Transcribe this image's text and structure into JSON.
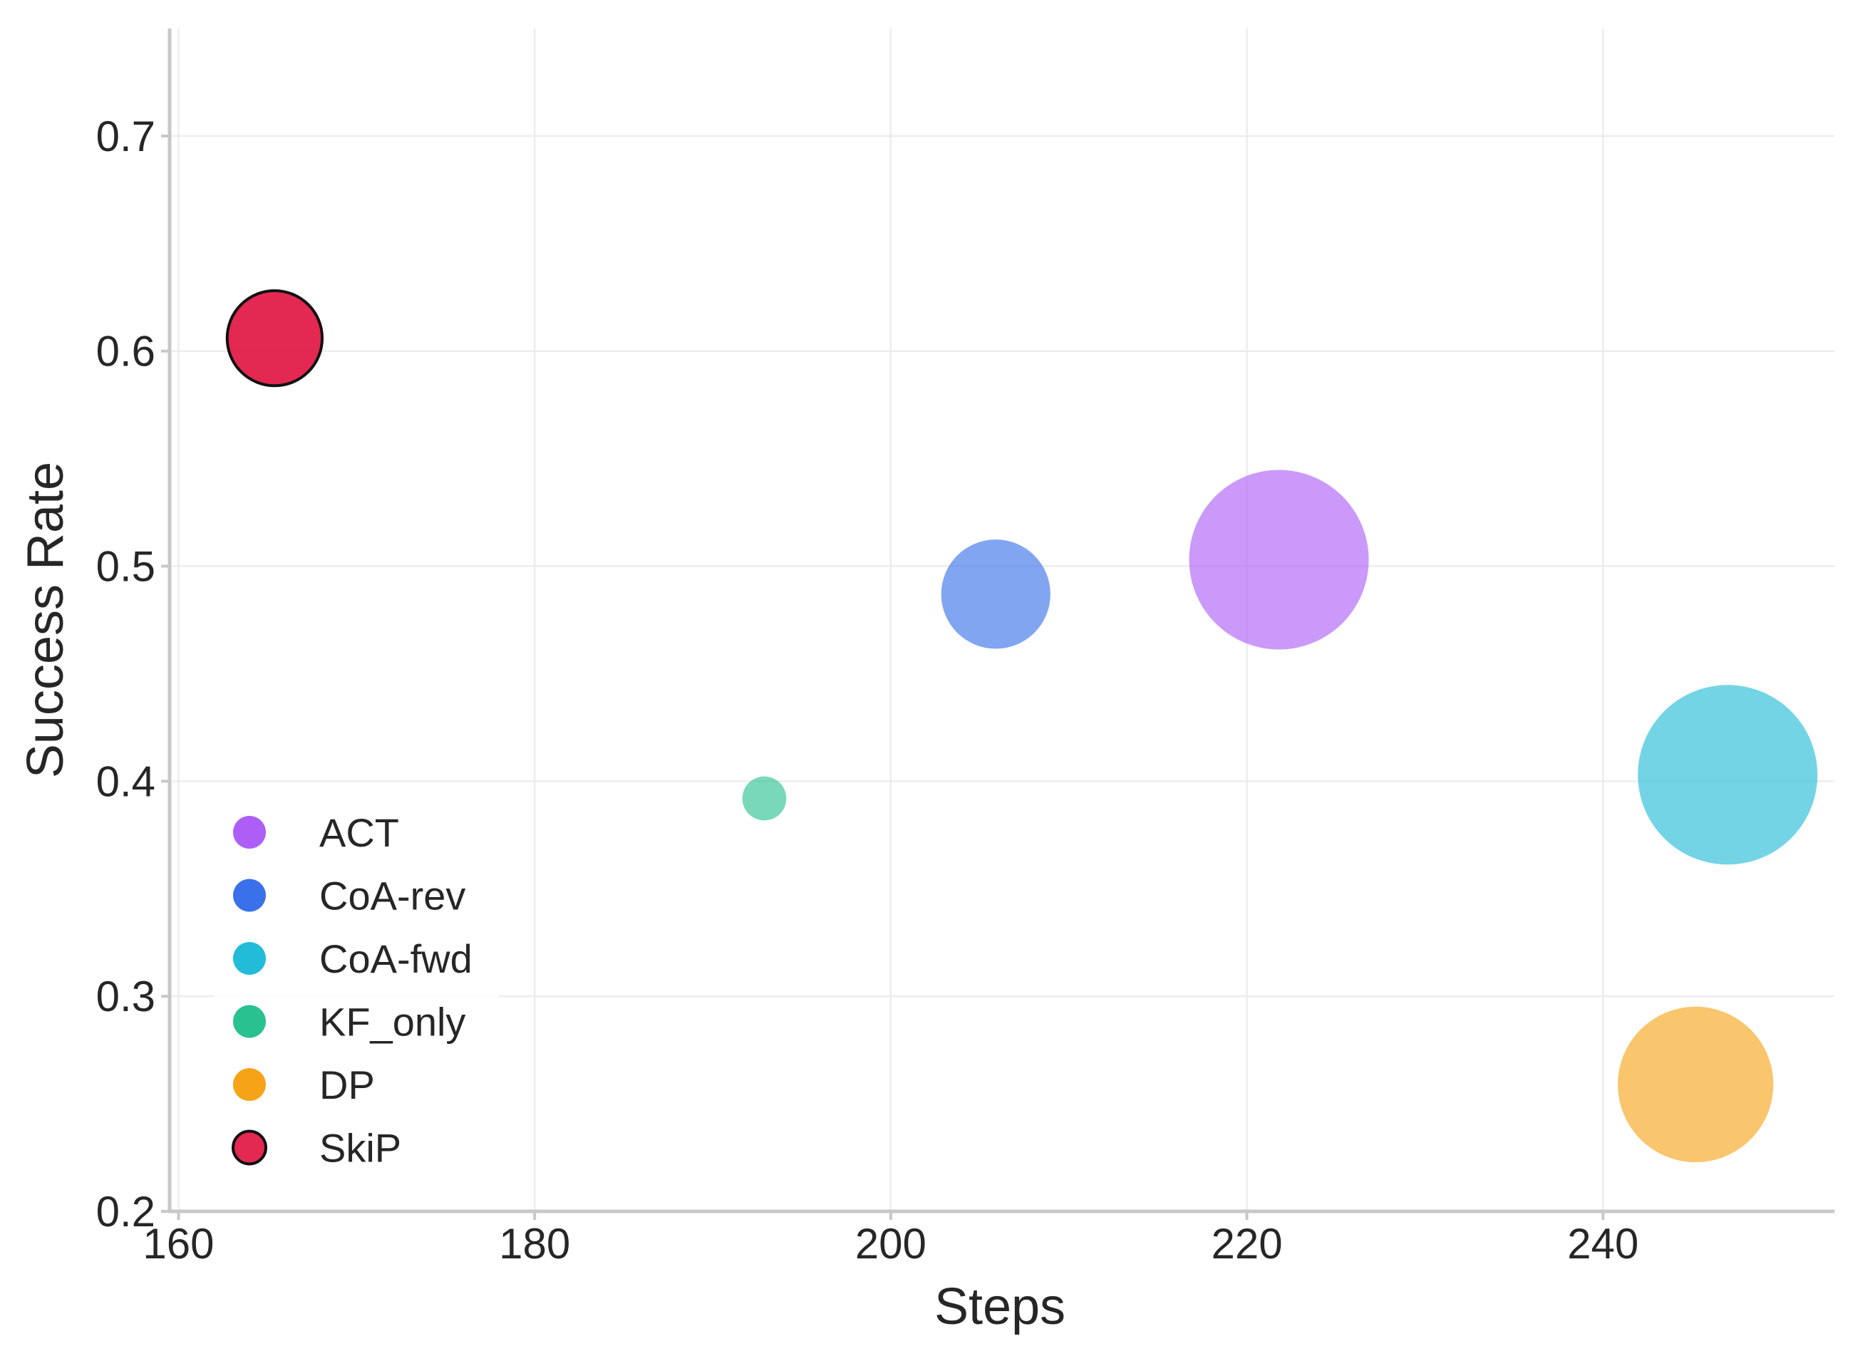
{
  "chart_data": {
    "type": "scatter",
    "subtype": "bubble",
    "title": "",
    "xlabel": "Steps",
    "ylabel": "Success Rate",
    "xlim": [
      159.5,
      253
    ],
    "ylim": [
      0.2,
      0.75
    ],
    "xticks": [
      160,
      180,
      200,
      220,
      240
    ],
    "xtick_labels": [
      "160",
      "180",
      "200",
      "220",
      "240"
    ],
    "yticks": [
      0.2,
      0.3,
      0.4,
      0.5,
      0.6,
      0.7
    ],
    "ytick_labels": [
      "0.2",
      "0.3",
      "0.4",
      "0.5",
      "0.6",
      "0.7"
    ],
    "grid": true,
    "legend_position": "lower-left",
    "series": [
      {
        "name": "ACT",
        "x": 221.8,
        "y": 0.503,
        "bubble_size": 1.0,
        "color": "#A855F7",
        "opacity": 0.6,
        "edge": false
      },
      {
        "name": "CoA-rev",
        "x": 205.9,
        "y": 0.487,
        "bubble_size": 0.37,
        "color": "#2F69E9",
        "opacity": 0.6,
        "edge": false
      },
      {
        "name": "CoA-fwd",
        "x": 247.0,
        "y": 0.403,
        "bubble_size": 1.0,
        "color": "#16B8D6",
        "opacity": 0.6,
        "edge": false
      },
      {
        "name": "KF_only",
        "x": 192.9,
        "y": 0.392,
        "bubble_size": 0.06,
        "color": "#1FBE8A",
        "opacity": 0.6,
        "edge": false
      },
      {
        "name": "DP",
        "x": 245.2,
        "y": 0.259,
        "bubble_size": 0.75,
        "color": "#F59E0B",
        "opacity": 0.6,
        "edge": false
      },
      {
        "name": "SkiP",
        "x": 165.4,
        "y": 0.606,
        "bubble_size": 0.28,
        "color": "#E11D48",
        "opacity": 0.95,
        "edge": true,
        "edge_color": "#111111"
      }
    ]
  }
}
